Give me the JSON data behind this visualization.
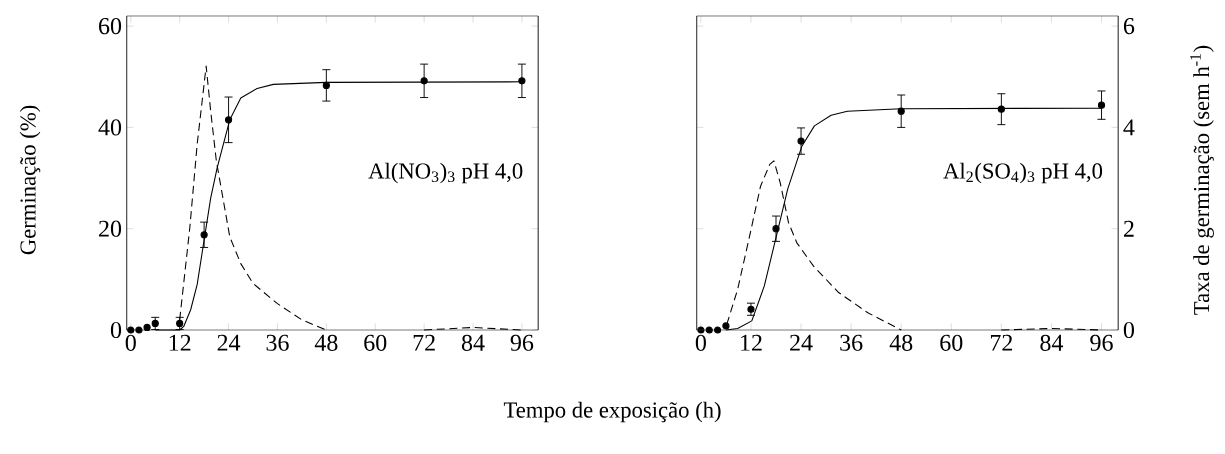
{
  "chart_data": [
    {
      "type": "line",
      "xlabel": "Tempo de exposição (h)",
      "ylabel": "Germinação (%)",
      "xlim": [
        -1,
        100
      ],
      "xticks": [
        0,
        12,
        24,
        36,
        48,
        60,
        72,
        84,
        96
      ],
      "ylim": [
        0,
        62
      ],
      "yticks": [
        0,
        20,
        40,
        60
      ],
      "y2lim": [
        0,
        6.2
      ],
      "tick_labels": [
        "x",
        "y"
      ],
      "annotations": [
        "Al(NO$_{3}$)$_{3}$ pH 4,0"
      ],
      "series": [
        {
          "type": "scatter",
          "color": "#000000",
          "marker": "circle",
          "x": [
            0,
            2,
            4,
            6,
            12,
            18,
            24,
            48,
            72,
            96
          ],
          "values": [
            0,
            0,
            0.5,
            1.3,
            1.3,
            18.8,
            41.5,
            48.3,
            49.2,
            49.2
          ],
          "errors": [
            null,
            null,
            null,
            1.2,
            1.2,
            2.5,
            4.5,
            3.1,
            3.3,
            3.3
          ]
        },
        {
          "color": "#000000",
          "line_style": "solid",
          "marker": "none",
          "x": [
            6,
            12,
            13,
            14.7,
            16.3,
            18.2,
            19.6,
            21.2,
            24.3,
            27,
            31,
            35,
            48,
            96
          ],
          "values": [
            0,
            0,
            0.7,
            4,
            9,
            18.8,
            26,
            32,
            41.5,
            45.8,
            47.7,
            48.5,
            48.9,
            49
          ]
        },
        {
          "axis": "y2",
          "color": "#000000",
          "line_style": "dashed",
          "marker": "none",
          "x": [
            12,
            14.5,
            16.3,
            18.5,
            19.6,
            21,
            24.3,
            27,
            30,
            36,
            42,
            48,
            60,
            72,
            84,
            96
          ],
          "values": [
            0.2,
            2.03,
            3.67,
            5.21,
            4.33,
            3.34,
            1.84,
            1.31,
            0.92,
            0.52,
            0.2,
            0,
            null,
            0,
            0.05,
            0
          ]
        }
      ]
    },
    {
      "type": "line",
      "y2label": "Taxa de germinação (sem h$^{-1}$)",
      "xlim": [
        -1,
        100
      ],
      "xticks": [
        0,
        12,
        24,
        36,
        48,
        60,
        72,
        84,
        96
      ],
      "ylim": [
        0,
        62
      ],
      "y2lim": [
        0,
        6.2
      ],
      "y2ticks": [
        0,
        2,
        4,
        6
      ],
      "tick_labels": [
        "x",
        "y2"
      ],
      "annotations": [
        "Al$_{2}$(SO$_{4}$)$_{3}$ pH 4,0"
      ],
      "series": [
        {
          "type": "scatter",
          "color": "#000000",
          "marker": "circle",
          "x": [
            0,
            2,
            4,
            6,
            12,
            18,
            24,
            48,
            72,
            96
          ],
          "values": [
            0,
            0,
            0,
            0.8,
            4.1,
            20,
            37.3,
            43.2,
            43.6,
            44.4
          ],
          "errors": [
            null,
            null,
            null,
            null,
            1.2,
            2.5,
            2.6,
            3.2,
            3.05,
            2.8
          ]
        },
        {
          "color": "#000000",
          "line_style": "solid",
          "marker": "none",
          "x": [
            6,
            8.8,
            12.2,
            15.2,
            18.1,
            20.8,
            24.2,
            27.2,
            31.2,
            35.1,
            48,
            96
          ],
          "values": [
            0,
            0.3,
            1.8,
            8.7,
            18.6,
            27.8,
            36.3,
            40.3,
            42.4,
            43.2,
            43.7,
            43.8
          ]
        },
        {
          "axis": "y2",
          "color": "#000000",
          "line_style": "dashed",
          "marker": "none",
          "x": [
            6.2,
            8.8,
            11.5,
            14.3,
            16.5,
            17.5,
            19,
            21,
            23,
            27,
            33,
            40,
            48,
            60,
            72,
            84,
            96
          ],
          "values": [
            0.11,
            0.8,
            1.79,
            2.84,
            3.27,
            3.34,
            2.91,
            2.12,
            1.72,
            1.26,
            0.74,
            0.34,
            0,
            null,
            0,
            0.03,
            0
          ]
        }
      ]
    }
  ]
}
